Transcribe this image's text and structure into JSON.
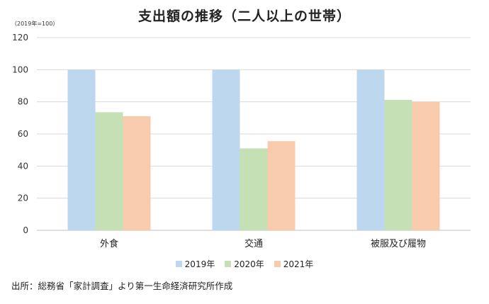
{
  "chart_data": {
    "type": "bar",
    "title": "支出額の推移（二人以上の世帯）",
    "note": "（2019年=100）",
    "categories": [
      "外食",
      "交通",
      "被服及び履物"
    ],
    "series": [
      {
        "name": "2019年",
        "values": [
          100,
          100,
          100
        ],
        "color": "#bdd7ee"
      },
      {
        "name": "2020年",
        "values": [
          73.5,
          51,
          81.2
        ],
        "color": "#c5e0b4"
      },
      {
        "name": "2021年",
        "values": [
          71,
          55.5,
          80
        ],
        "color": "#f8cbad"
      }
    ],
    "yticks": [
      0,
      20,
      40,
      60,
      80,
      100,
      120
    ],
    "ylim": [
      0,
      120
    ],
    "grid": true,
    "legend": "bottom"
  },
  "source": "出所：総務省「家計調査」より第一生命経済研究所作成"
}
